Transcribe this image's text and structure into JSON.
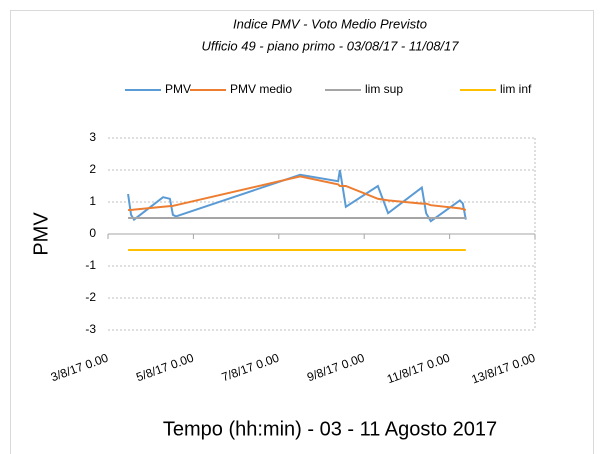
{
  "chart_data": {
    "type": "line",
    "title": "Indice PMV - Voto Medio Previsto",
    "subtitle": "Ufficio 49 - piano primo - 03/08/17 - 11/08/17",
    "x_label": "Tempo (hh:min) - 03 - 11 Agosto 2017",
    "y_label": "PMV",
    "x": [
      3.47,
      3.54,
      3.61,
      4.29,
      4.45,
      4.52,
      4.59,
      7.5,
      8.39,
      8.43,
      8.48,
      8.57,
      9.32,
      9.56,
      10.35,
      10.45,
      10.56,
      11.24,
      11.31,
      11.38
    ],
    "series": [
      {
        "name": "PMV",
        "color": "#5b9bd5",
        "values": [
          1.25,
          0.6,
          0.45,
          1.15,
          1.1,
          0.6,
          0.55,
          1.85,
          1.65,
          2.0,
          1.6,
          0.85,
          1.5,
          0.65,
          1.45,
          0.65,
          0.4,
          1.05,
          0.95,
          0.45
        ]
      },
      {
        "name": "PMV medio",
        "color": "#ed7d31",
        "values": [
          0.75,
          0.75,
          0.76,
          0.85,
          0.87,
          0.88,
          0.9,
          1.8,
          1.55,
          1.5,
          1.5,
          1.5,
          1.1,
          1.05,
          0.95,
          0.95,
          0.9,
          0.8,
          0.78,
          0.75
        ]
      },
      {
        "name": "lim sup",
        "color": "#a5a5a5",
        "values": [
          0.5,
          0.5,
          0.5,
          0.5,
          0.5,
          0.5,
          0.5,
          0.5,
          0.5,
          0.5,
          0.5,
          0.5,
          0.5,
          0.5,
          0.5,
          0.5,
          0.5,
          0.5,
          0.5,
          0.5
        ]
      },
      {
        "name": "lim inf",
        "color": "#ffc000",
        "values": [
          -0.5,
          -0.5,
          -0.5,
          -0.5,
          -0.5,
          -0.5,
          -0.5,
          -0.5,
          -0.5,
          -0.5,
          -0.5,
          -0.5,
          -0.5,
          -0.5,
          -0.5,
          -0.5,
          -0.5,
          -0.5,
          -0.5,
          -0.5
        ]
      }
    ],
    "xlim": [
      3,
      13
    ],
    "xticks": [
      {
        "value": 3,
        "label": "3/8/17 0.00"
      },
      {
        "value": 5,
        "label": "5/8/17 0.00"
      },
      {
        "value": 7,
        "label": "7/8/17 0.00"
      },
      {
        "value": 9,
        "label": "9/8/17 0.00"
      },
      {
        "value": 11,
        "label": "11/8/17 0.00"
      },
      {
        "value": 13,
        "label": "13/8/17 0.00"
      }
    ],
    "ylim": [
      -3,
      3
    ],
    "yticks": [
      -3,
      -2,
      -1,
      0,
      1,
      2,
      3
    ],
    "grid": true,
    "legend": "top"
  }
}
